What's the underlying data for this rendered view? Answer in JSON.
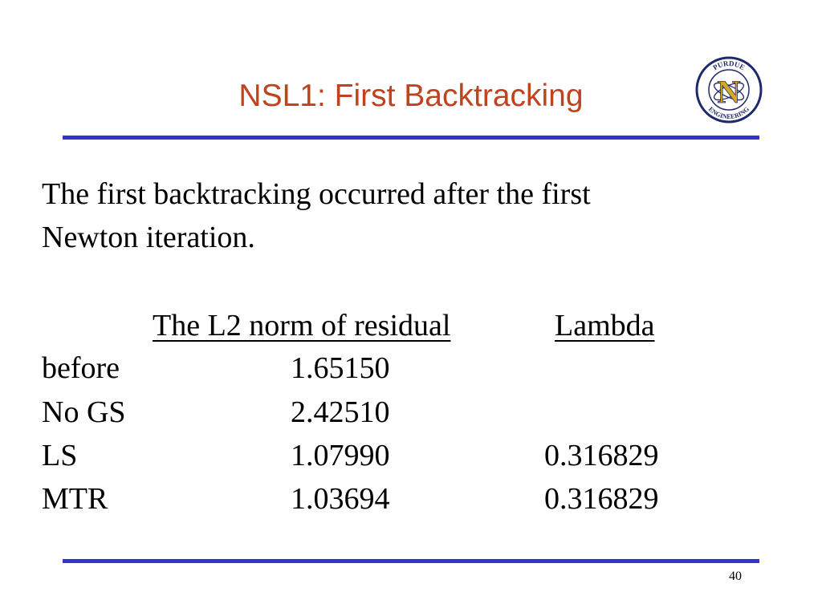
{
  "slide": {
    "title": "NSL1: First Backtracking",
    "intro_line1": "The first backtracking occurred after the first",
    "intro_line2": "Newton iteration.",
    "page_number": "40"
  },
  "logo": {
    "letter": "N",
    "text_top": "PURDUE",
    "text_left": "NUCLEAR",
    "text_bottom": "ENGINEERING"
  },
  "table": {
    "headers": [
      "The L2 norm of residual",
      "Lambda"
    ],
    "rows": [
      {
        "label": "before",
        "norm": "1.65150",
        "lambda": ""
      },
      {
        "label": "No GS",
        "norm": "2.42510",
        "lambda": ""
      },
      {
        "label": "LS",
        "norm": "1.07990",
        "lambda": "0.316829"
      },
      {
        "label": "MTR",
        "norm": "1.03694",
        "lambda": "0.316829"
      }
    ]
  },
  "colors": {
    "title": "#c0431f",
    "rule": "#3333cc",
    "logo_letter": "#d9a81e",
    "logo_ring": "#1f2a6b"
  }
}
